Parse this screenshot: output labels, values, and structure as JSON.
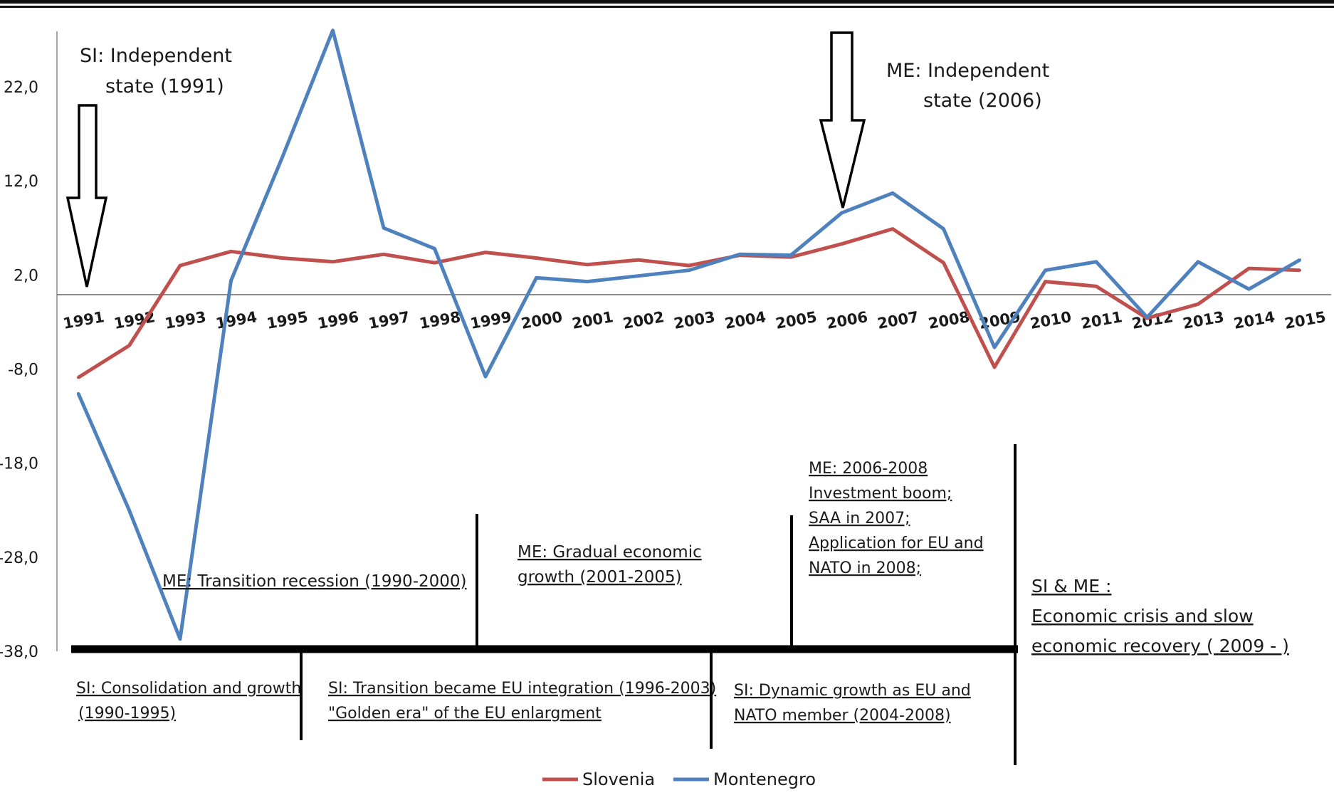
{
  "chart_data": {
    "type": "line",
    "x": [
      "1991",
      "1992",
      "1993",
      "1994",
      "1995",
      "1996",
      "1997",
      "1998",
      "1999",
      "2000",
      "2001",
      "2002",
      "2003",
      "2004",
      "2005",
      "2006",
      "2007",
      "2008",
      "2009",
      "2010",
      "2011",
      "2012",
      "2013",
      "2014",
      "2015"
    ],
    "yticks": [
      "22,0",
      "12,0",
      "2,0",
      "-8,0",
      "-18,0",
      "-28,0",
      "-38,0"
    ],
    "ylim": [
      -38,
      28
    ],
    "series": [
      {
        "name": "Slovenia",
        "color": "#c0504d",
        "values": [
          -8.9,
          -5.5,
          3.0,
          4.5,
          3.8,
          3.4,
          4.2,
          3.3,
          4.4,
          3.8,
          3.1,
          3.6,
          3.0,
          4.1,
          3.9,
          5.3,
          6.9,
          3.3,
          -7.8,
          1.3,
          0.8,
          -2.6,
          -1.1,
          2.7,
          2.5
        ]
      },
      {
        "name": "Montenegro",
        "color": "#4f81bd",
        "values": [
          -10.6,
          -23.0,
          -36.7,
          1.4,
          14.4,
          28.0,
          7.0,
          4.8,
          -8.8,
          1.7,
          1.3,
          1.9,
          2.5,
          4.2,
          4.1,
          8.6,
          10.7,
          6.9,
          -5.7,
          2.5,
          3.4,
          -2.5,
          3.4,
          0.5,
          3.6
        ]
      }
    ],
    "grid": false,
    "legend_position": "bottom"
  },
  "annotations": {
    "si_independent_line1": "SI: Independent",
    "si_independent_line2": "state (1991)",
    "me_independent_line1": "ME: Independent",
    "me_independent_line2": "state (2006)",
    "me_transition": "ME: Transition recession  (1990-2000)",
    "me_gradual_line1": "ME: Gradual economic",
    "me_gradual_line2": "growth (2001-2005)",
    "me_boom_line1": "ME: 2006-2008",
    "me_boom_line2": "Investment boom;",
    "me_boom_line3": "SAA in 2007;",
    "me_boom_line4": "Application for EU and",
    "me_boom_line5": "NATO in 2008;",
    "si_me_line1": "SI & ME :",
    "si_me_line2": "Economic crisis and slow",
    "si_me_line3": "economic recovery ( 2009 -  )",
    "si_consolidation_line1": "SI: Consolidation and growth",
    "si_consolidation_line2": "(1990-1995)",
    "si_transition_line1": "SI: Transition became EU integration (1996-2003)",
    "si_transition_line2": "\"Golden era\" of the EU enlargment",
    "si_dynamic_line1": "SI: Dynamic growth as EU and",
    "si_dynamic_line2": "NATO member (2004-2008)"
  }
}
